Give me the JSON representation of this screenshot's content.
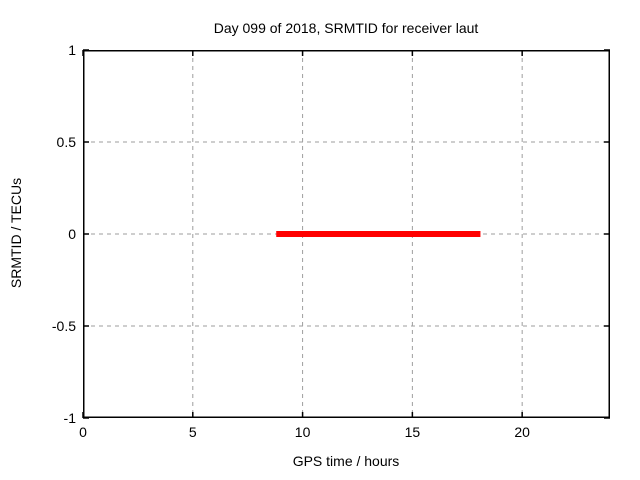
{
  "chart_data": {
    "type": "line",
    "title": "Day 099 of 2018, SRMTID for receiver laut",
    "xlabel": "GPS time / hours",
    "ylabel": "SRMTID / TECUs",
    "xlim": [
      0,
      24
    ],
    "ylim": [
      -1,
      1
    ],
    "x_tick_labels": [
      "0",
      "5",
      "10",
      "15",
      "20"
    ],
    "x_tick_values": [
      0,
      5,
      10,
      15,
      20
    ],
    "y_tick_labels": [
      "1",
      "0.5",
      "0",
      "-0.5",
      "-1"
    ],
    "y_tick_values": [
      1,
      0.5,
      0,
      -0.5,
      -1
    ],
    "grid": true,
    "legend_position": "none",
    "series": [
      {
        "name": "SRMTID",
        "shape": "horizontal-segment",
        "y": 0,
        "x_start": 8.8,
        "x_end": 18.1,
        "color": "#ff0000",
        "thickness_px": 6
      }
    ]
  },
  "colors": {
    "background": "#ffffff",
    "border": "#000000",
    "grid": "#9e9e9e",
    "tick": "#000000",
    "text": "#000000",
    "series": "#ff0000"
  }
}
